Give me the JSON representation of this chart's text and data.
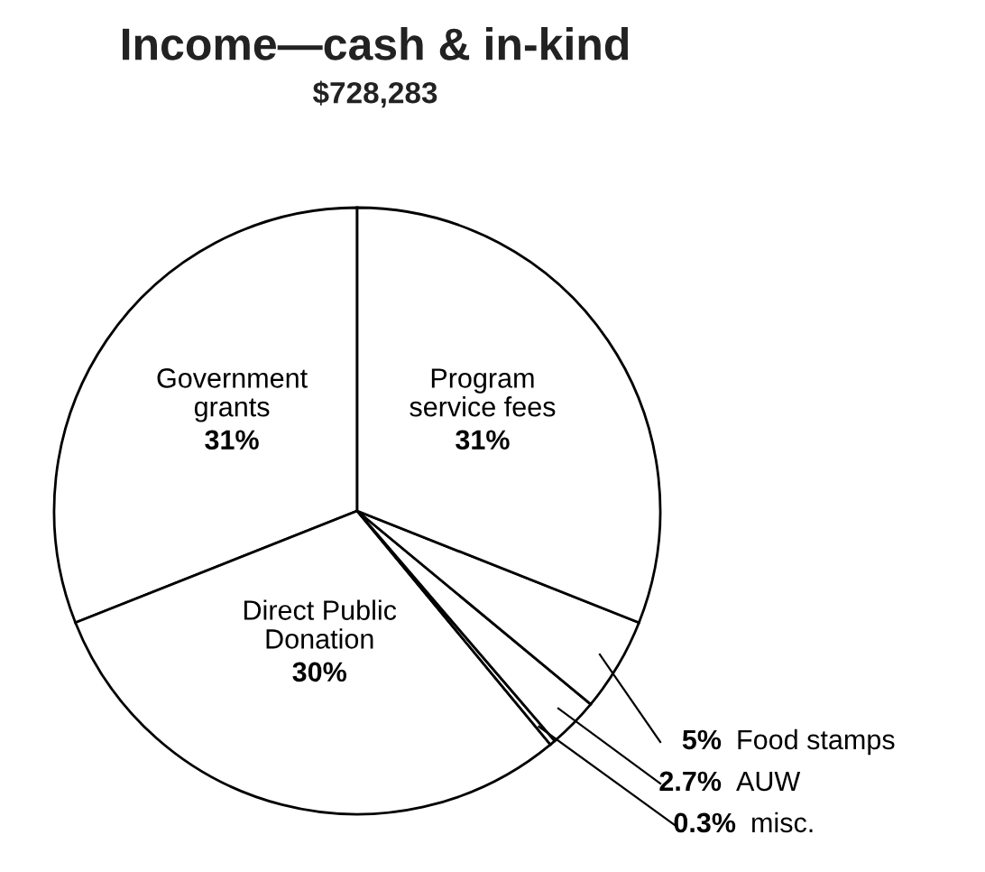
{
  "chart_data": {
    "type": "pie",
    "title": "Income—cash & in-kind",
    "subtitle": "$728,283",
    "categories": [
      "Government\ngrants",
      "Direct Public\nDonation",
      "misc.",
      "AUW",
      "Food stamps",
      "Program\nservice fees"
    ],
    "values": [
      31,
      30,
      0.3,
      2.7,
      5,
      31
    ],
    "colors": [
      "#ffffff",
      "#ffffff",
      "#ffffff",
      "#ffffff",
      "#ffffff",
      "#ffffff"
    ],
    "value_labels": [
      "31%",
      "30%",
      "0.3%",
      "2.7%",
      "5%",
      "31%"
    ]
  }
}
